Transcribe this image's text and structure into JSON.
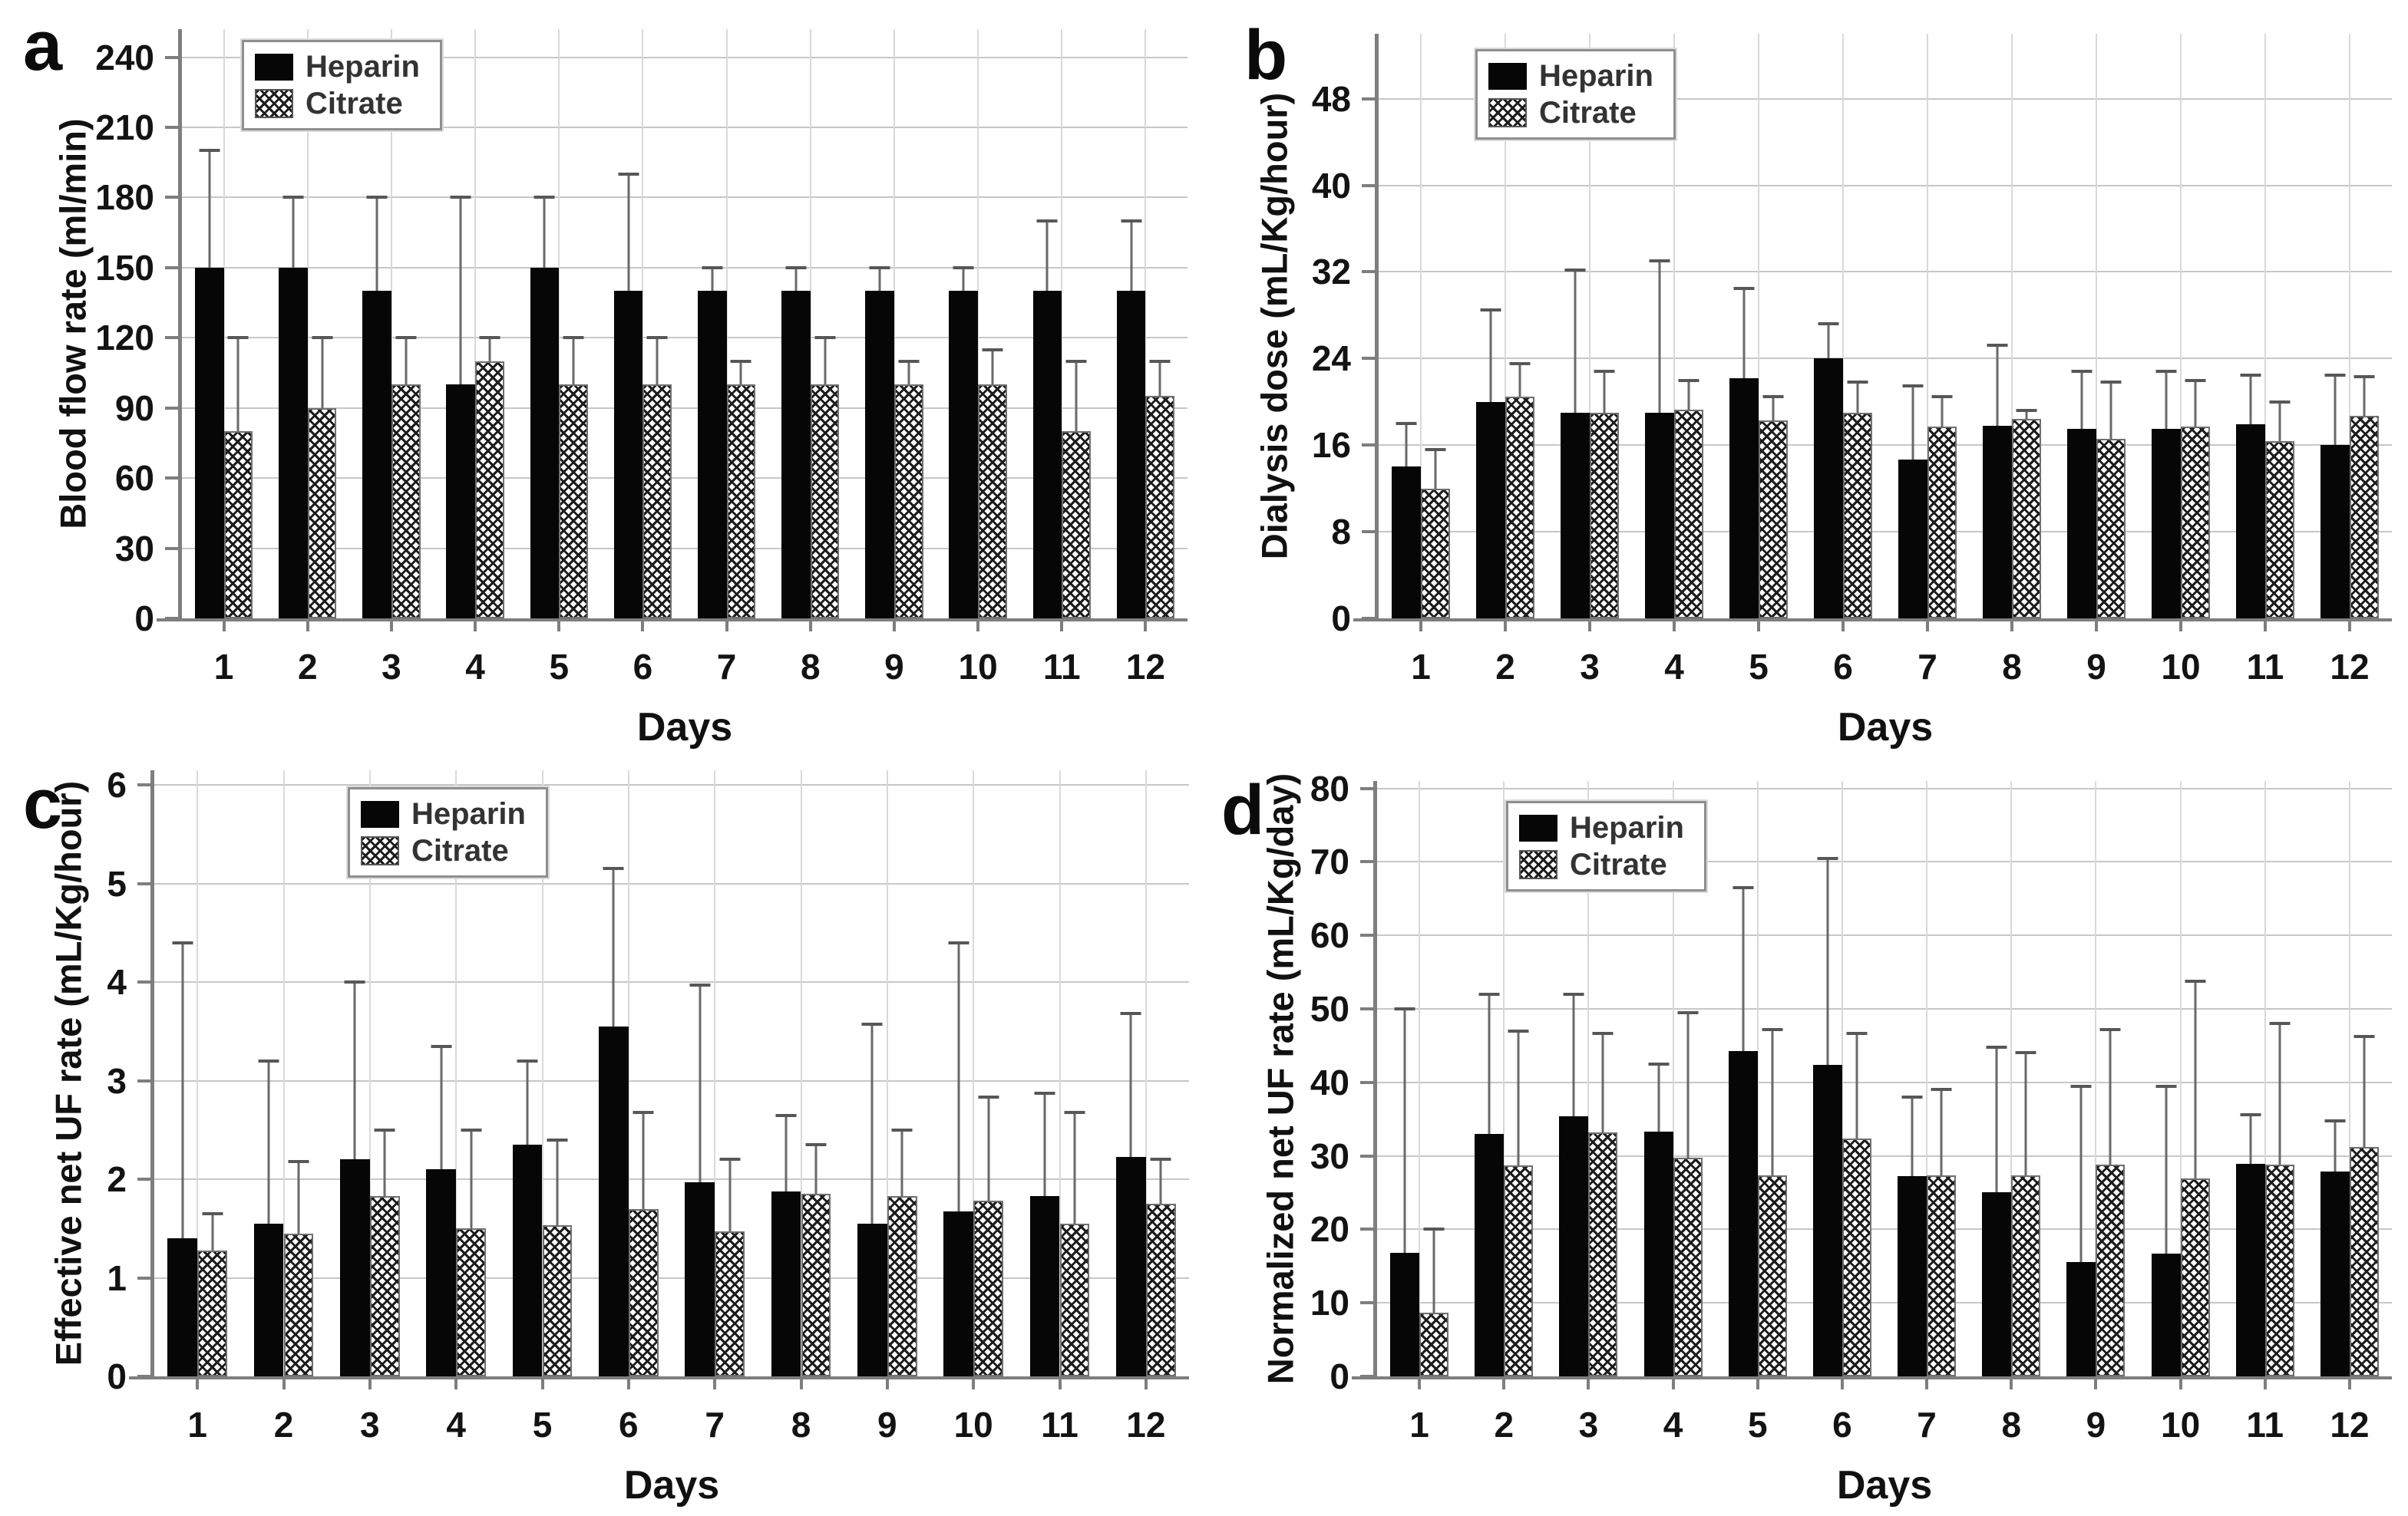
{
  "figure": {
    "xlabel": "Days",
    "legend": {
      "series1": "Heparin",
      "series2": "Citrate"
    },
    "colors": {
      "heparin_bar": "#060606",
      "citrate_pattern": "#1c1c1c",
      "citrate_fill": "#ffffff",
      "gridline": "#c7c7c7",
      "axis": "#7e7e7e",
      "error_bar": "#6a6a6a",
      "text": "#111111"
    }
  },
  "chart_data": [
    {
      "panel_letter": "a",
      "type": "bar",
      "title": "",
      "xlabel": "Days",
      "ylabel": "Blood flow rate (ml/min)",
      "categories": [
        "1",
        "2",
        "3",
        "4",
        "5",
        "6",
        "7",
        "8",
        "9",
        "10",
        "11",
        "12"
      ],
      "yticks": [
        0,
        30,
        60,
        90,
        120,
        150,
        180,
        210,
        240
      ],
      "ylim": [
        0,
        252
      ],
      "grid": true,
      "legend_position": "top-left",
      "error_bars": "upper",
      "series": [
        {
          "name": "Heparin",
          "values": [
            150,
            150,
            140,
            100,
            150,
            140,
            140,
            140,
            140,
            140,
            140,
            140
          ],
          "err_up": [
            50,
            30,
            40,
            80,
            30,
            50,
            10,
            10,
            10,
            10,
            30,
            30
          ]
        },
        {
          "name": "Citrate",
          "values": [
            80,
            90,
            100,
            110,
            100,
            100,
            100,
            100,
            100,
            100,
            80,
            95
          ],
          "err_up": [
            40,
            30,
            20,
            10,
            20,
            20,
            10,
            20,
            10,
            15,
            30,
            15
          ]
        }
      ]
    },
    {
      "panel_letter": "b",
      "type": "bar",
      "title": "",
      "xlabel": "Days",
      "ylabel": "Dialysis dose (mL/Kg/hour)",
      "categories": [
        "1",
        "2",
        "3",
        "4",
        "5",
        "6",
        "7",
        "8",
        "9",
        "10",
        "11",
        "12"
      ],
      "yticks": [
        0,
        8,
        16,
        24,
        32,
        40,
        48
      ],
      "ylim": [
        0,
        54
      ],
      "grid": true,
      "legend_position": "top-left",
      "error_bars": "upper",
      "series": [
        {
          "name": "Heparin",
          "values": [
            14,
            20,
            19,
            19,
            22.2,
            24,
            14.7,
            17.8,
            17.5,
            17.5,
            17.9,
            16
          ],
          "err_up": [
            4,
            8.5,
            13.2,
            14,
            8.3,
            3.2,
            6.8,
            7.4,
            5.3,
            5.3,
            4.6,
            6.5
          ]
        },
        {
          "name": "Citrate",
          "values": [
            12,
            20.5,
            19,
            19.3,
            18.3,
            19,
            17.7,
            18.4,
            16.6,
            17.7,
            16.4,
            18.7
          ],
          "err_up": [
            3.6,
            3,
            3.8,
            2.7,
            2.2,
            2.8,
            2.8,
            0.8,
            5.2,
            4.3,
            3.6,
            3.6
          ]
        }
      ]
    },
    {
      "panel_letter": "c",
      "type": "bar",
      "title": "",
      "xlabel": "Days",
      "ylabel": "Effective net UF rate (mL/Kg/hour)",
      "categories": [
        "1",
        "2",
        "3",
        "4",
        "5",
        "6",
        "7",
        "8",
        "9",
        "10",
        "11",
        "12"
      ],
      "yticks": [
        0,
        1,
        2,
        3,
        4,
        5,
        6
      ],
      "ylim": [
        0,
        6.15
      ],
      "grid": true,
      "legend_position": "top-left",
      "error_bars": "upper",
      "series": [
        {
          "name": "Heparin",
          "values": [
            1.4,
            1.55,
            2.2,
            2.1,
            2.35,
            3.55,
            1.97,
            1.88,
            1.55,
            1.67,
            1.83,
            2.23
          ],
          "err_up": [
            3.0,
            1.65,
            1.8,
            1.25,
            0.85,
            1.6,
            2.0,
            0.77,
            2.02,
            2.73,
            1.04,
            1.45
          ]
        },
        {
          "name": "Citrate",
          "values": [
            1.28,
            1.45,
            1.83,
            1.5,
            1.53,
            1.7,
            1.47,
            1.85,
            1.83,
            1.78,
            1.55,
            1.75
          ],
          "err_up": [
            0.37,
            0.73,
            0.67,
            1.0,
            0.87,
            0.98,
            0.73,
            0.5,
            0.67,
            1.05,
            1.13,
            0.45
          ]
        }
      ]
    },
    {
      "panel_letter": "d",
      "type": "bar",
      "title": "",
      "xlabel": "Days",
      "ylabel": "Normalized net UF rate (mL/Kg/day)",
      "categories": [
        "1",
        "2",
        "3",
        "4",
        "5",
        "6",
        "7",
        "8",
        "9",
        "10",
        "11",
        "12"
      ],
      "yticks": [
        0,
        10,
        20,
        30,
        40,
        50,
        60,
        70,
        80
      ],
      "ylim": [
        0,
        81
      ],
      "grid": true,
      "legend_position": "top-left",
      "error_bars": "upper",
      "series": [
        {
          "name": "Heparin",
          "values": [
            16.8,
            33,
            35.4,
            33.3,
            44.3,
            42.4,
            27.2,
            25.1,
            15.6,
            16.7,
            28.9,
            27.9
          ],
          "err_up": [
            33.2,
            19,
            16.6,
            9.2,
            22.2,
            28.1,
            10.8,
            19.7,
            23.9,
            22.8,
            6.7,
            6.9
          ]
        },
        {
          "name": "Citrate",
          "values": [
            8.7,
            28.7,
            33.2,
            29.8,
            27.3,
            32.4,
            27.4,
            27.3,
            28.8,
            26.9,
            28.8,
            31.2
          ],
          "err_up": [
            11.3,
            18.3,
            13.5,
            19.7,
            19.9,
            14.3,
            11.6,
            16.7,
            18.4,
            26.9,
            19.2,
            15
          ]
        }
      ]
    }
  ]
}
